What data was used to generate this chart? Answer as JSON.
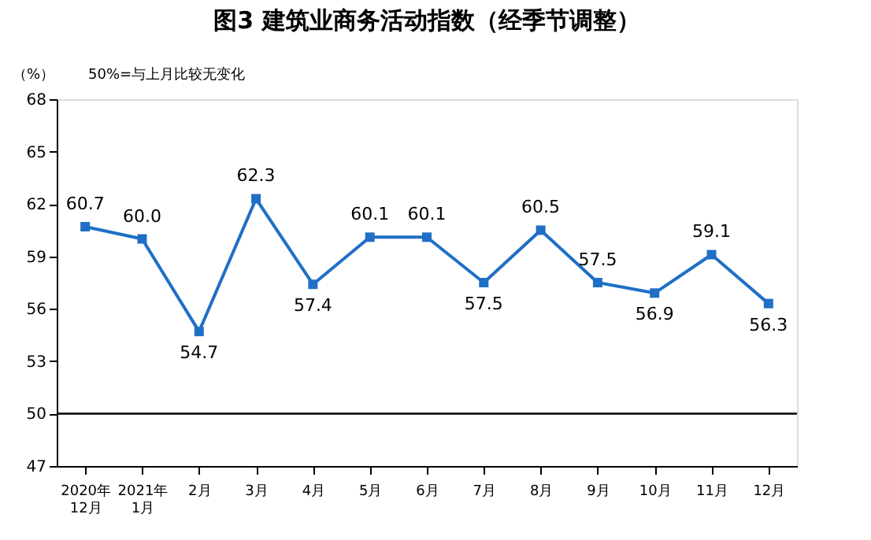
{
  "chart_data": {
    "type": "line",
    "title": "图3  建筑业商务活动指数（经季节调整）",
    "annotations": [
      "（%）",
      "50%=与上月比较无变化"
    ],
    "categories": [
      "2020年\n12月",
      "2021年\n1月",
      "2月",
      "3月",
      "4月",
      "5月",
      "6月",
      "7月",
      "8月",
      "9月",
      "10月",
      "11月",
      "12月"
    ],
    "series": [
      {
        "color": "#1f6fc6",
        "values": [
          60.7,
          60.0,
          54.7,
          62.3,
          57.4,
          60.1,
          60.1,
          57.5,
          60.5,
          57.5,
          56.9,
          59.1,
          56.3
        ]
      }
    ],
    "ylim": [
      47,
      68
    ],
    "yticks": [
      47,
      50,
      53,
      56,
      59,
      62,
      65,
      68
    ],
    "ref_lines": [
      {
        "axis": "y",
        "value": 50,
        "label": null,
        "color": "#000000"
      }
    ],
    "value_labels": [
      "60.7",
      "60.0",
      "54.7",
      "62.3",
      "57.4",
      "60.1",
      "60.1",
      "57.5",
      "60.5",
      "57.5",
      "56.9",
      "59.1",
      "56.3"
    ],
    "marker": "square",
    "line_style": "solid",
    "grid": false
  }
}
